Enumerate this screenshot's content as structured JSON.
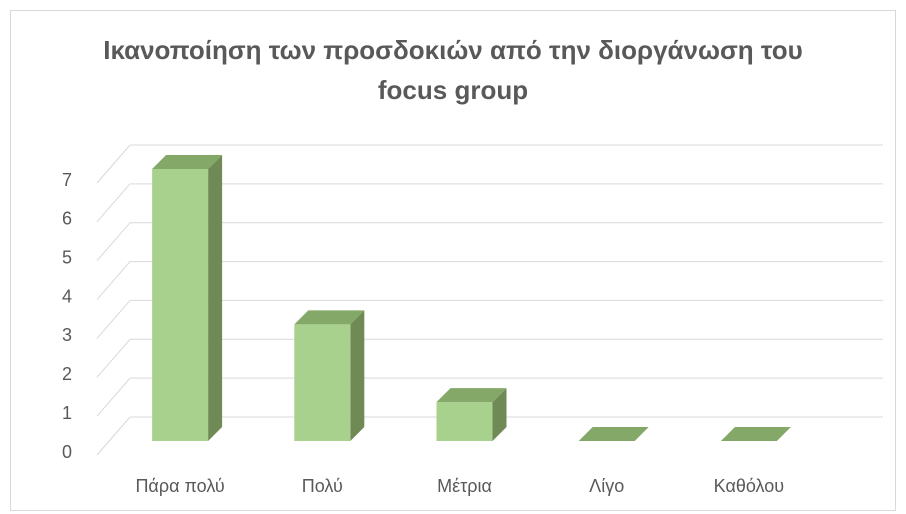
{
  "chart_data": {
    "type": "bar3d",
    "title": "Ικανοποίηση των προσδοκιών από την διοργάνωση του focus group",
    "categories": [
      "Πάρα πολύ",
      "Πολύ",
      "Μέτρια",
      "Λίγο",
      "Καθόλου"
    ],
    "values": [
      7,
      3,
      1,
      0,
      0
    ],
    "color": "#a9d18e",
    "ylim": [
      0,
      7
    ],
    "yticks": [
      0,
      1,
      2,
      3,
      4,
      5,
      6,
      7
    ],
    "grid": true
  }
}
